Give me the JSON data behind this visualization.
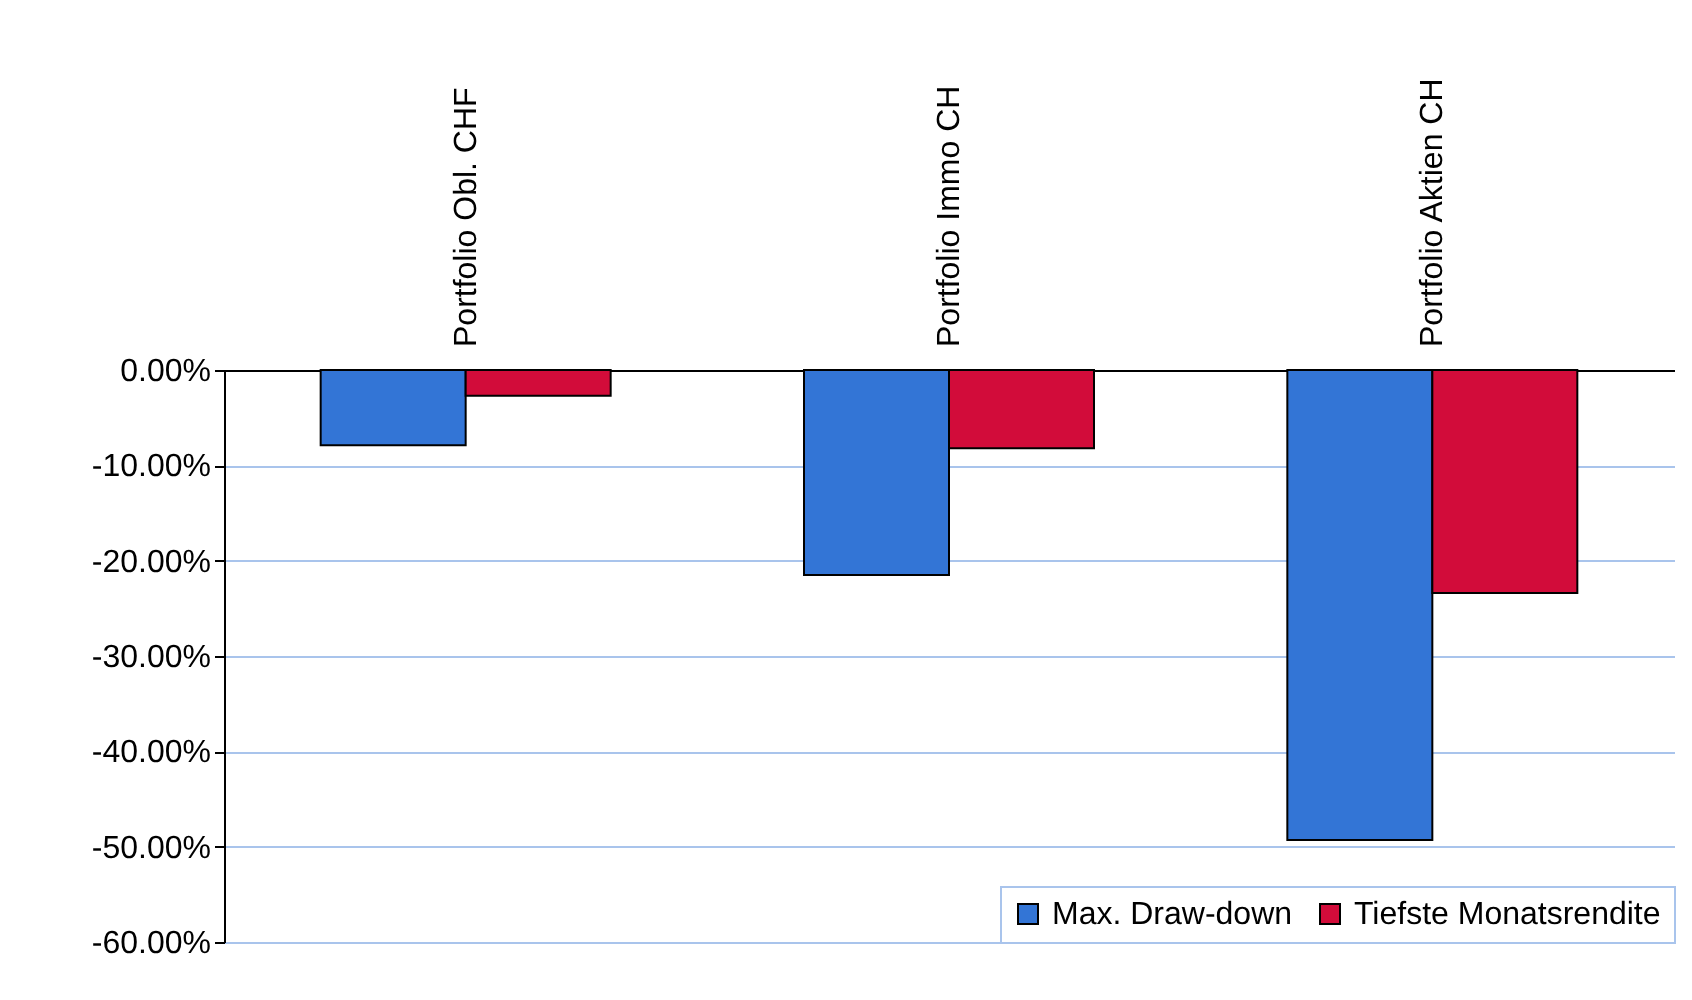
{
  "chart_data": {
    "type": "bar",
    "categories": [
      "Portfolio Obl. CHF",
      "Portfolio Immo CH",
      "Portfolio Aktien CH"
    ],
    "series": [
      {
        "name": "Max. Draw-down",
        "color": "#3375d6",
        "values": [
          -7.9,
          -21.5,
          -49.3
        ]
      },
      {
        "name": "Tiefste Monatsrendite",
        "color": "#d20c3a",
        "values": [
          -2.7,
          -8.2,
          -23.4
        ]
      }
    ],
    "ylim": [
      -60,
      0
    ],
    "yticks": [
      {
        "value": -60,
        "label": "-60.00%"
      },
      {
        "value": -50,
        "label": "-50.00%"
      },
      {
        "value": -40,
        "label": "-40.00%"
      },
      {
        "value": -30,
        "label": "-30.00%"
      },
      {
        "value": -20,
        "label": "-20.00%"
      },
      {
        "value": -10,
        "label": "-10.00%"
      },
      {
        "value": 0,
        "label": "0.00%"
      }
    ],
    "grid": "y",
    "legend": "bottom right"
  }
}
